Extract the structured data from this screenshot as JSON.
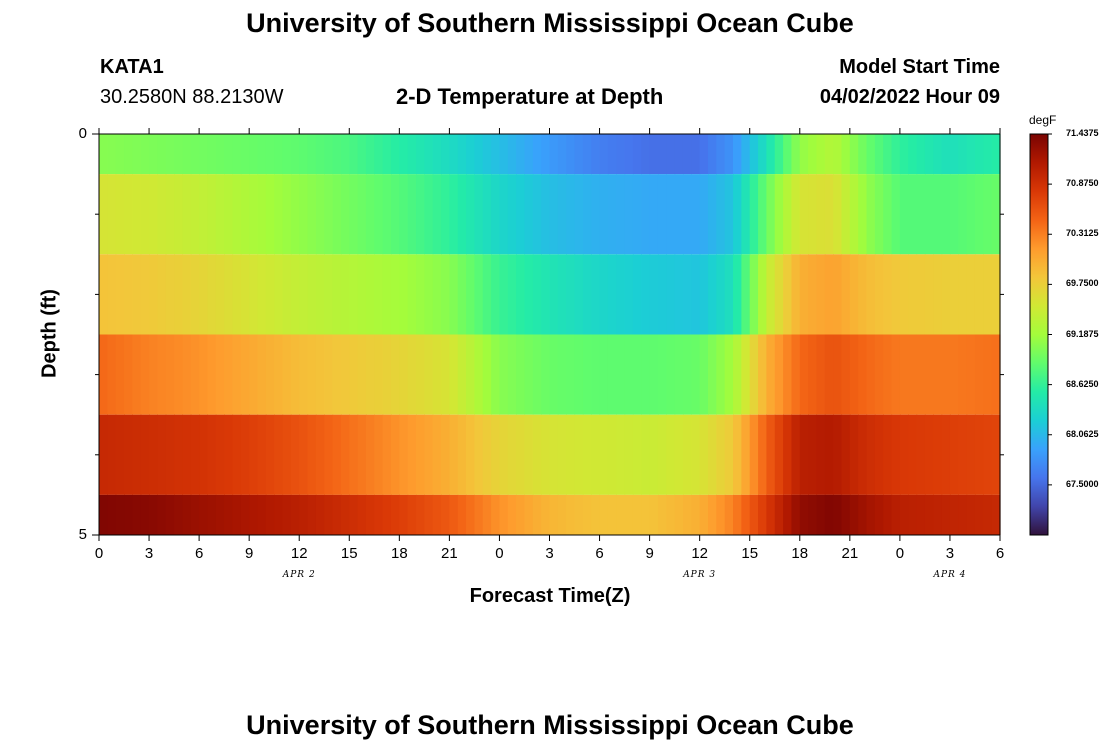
{
  "page": {
    "title": "University of Southern Mississippi Ocean Cube",
    "station_id": "KATA1",
    "station_coords": "30.2580N  88.2130W",
    "chart_title": "2-D Temperature at Depth",
    "model_start_label": "Model Start Time",
    "model_start_value": "04/02/2022 Hour 09",
    "footer_title": "University of Southern Mississippi Ocean Cube"
  },
  "chart_data": {
    "type": "heatmap",
    "title": "2-D Temperature at Depth",
    "xlabel": "Forecast Time(Z)",
    "ylabel": "Depth (ft)",
    "x_tick_labels": [
      "0",
      "3",
      "6",
      "9",
      "12",
      "15",
      "18",
      "21",
      "0",
      "3",
      "6",
      "9",
      "12",
      "15",
      "18",
      "21",
      "0",
      "3",
      "6"
    ],
    "x_range_hours": [
      0,
      54
    ],
    "date_labels": [
      {
        "text": "APR 2",
        "hour": 12
      },
      {
        "text": "APR 3",
        "hour": 36
      },
      {
        "text": "APR 4",
        "hour": 51
      }
    ],
    "y_tick_labels": [
      "0",
      "5"
    ],
    "y_range": [
      0,
      5
    ],
    "depth_bands": [
      {
        "top": 0,
        "bottom": 0.5
      },
      {
        "top": 0.5,
        "bottom": 1.5
      },
      {
        "top": 1.5,
        "bottom": 2.5
      },
      {
        "top": 2.5,
        "bottom": 3.5
      },
      {
        "top": 3.5,
        "bottom": 4.5
      },
      {
        "top": 4.5,
        "bottom": 5
      }
    ],
    "profile_hours": [
      0,
      3,
      6,
      9,
      12,
      15,
      18,
      21,
      24,
      27,
      30,
      33,
      36,
      38,
      40,
      42,
      44,
      46,
      48,
      51,
      54
    ],
    "values": [
      [
        69.05,
        69.0,
        68.95,
        68.9,
        68.85,
        68.75,
        68.55,
        68.35,
        68.1,
        67.85,
        67.65,
        67.55,
        67.55,
        67.8,
        68.4,
        69.1,
        69.3,
        68.9,
        68.6,
        68.4,
        68.55
      ],
      [
        69.55,
        69.5,
        69.4,
        69.25,
        69.1,
        68.95,
        68.8,
        68.6,
        68.3,
        68.1,
        68.0,
        67.95,
        67.95,
        68.15,
        68.9,
        69.55,
        69.6,
        69.1,
        68.8,
        68.8,
        68.9
      ],
      [
        69.85,
        69.8,
        69.7,
        69.55,
        69.4,
        69.3,
        69.2,
        69.05,
        68.65,
        68.45,
        68.3,
        68.2,
        68.15,
        68.4,
        69.4,
        70.0,
        70.1,
        69.9,
        69.8,
        69.75,
        69.75
      ],
      [
        70.45,
        70.3,
        70.2,
        70.05,
        69.9,
        69.8,
        69.7,
        69.55,
        69.05,
        68.9,
        68.85,
        68.85,
        68.9,
        69.2,
        70.0,
        70.45,
        70.6,
        70.45,
        70.35,
        70.35,
        70.4
      ],
      [
        70.95,
        70.9,
        70.85,
        70.75,
        70.6,
        70.4,
        70.2,
        70.0,
        69.7,
        69.55,
        69.5,
        69.45,
        69.55,
        69.8,
        70.5,
        71.05,
        71.1,
        70.9,
        70.8,
        70.75,
        70.7
      ],
      [
        71.4,
        71.35,
        71.25,
        71.15,
        71.05,
        70.9,
        70.75,
        70.55,
        70.2,
        69.95,
        69.85,
        69.85,
        70.0,
        70.3,
        70.8,
        71.3,
        71.4,
        71.2,
        71.05,
        71.0,
        70.95
      ]
    ],
    "colorbar": {
      "unit": "degF",
      "min": 66.9375,
      "max": 71.4375,
      "labels": [
        "71.4375",
        "70.8750",
        "70.3125",
        "69.7500",
        "69.1875",
        "68.6250",
        "68.0625",
        "67.5000"
      ],
      "colors": [
        "#30123b",
        "#4145ab",
        "#4675ed",
        "#39a2fc",
        "#1bcfd4",
        "#24eca6",
        "#61fc6c",
        "#a4fc3b",
        "#d1e834",
        "#f3c63a",
        "#fe9b2d",
        "#f36315",
        "#d93806",
        "#b11901",
        "#7a0402"
      ]
    }
  }
}
